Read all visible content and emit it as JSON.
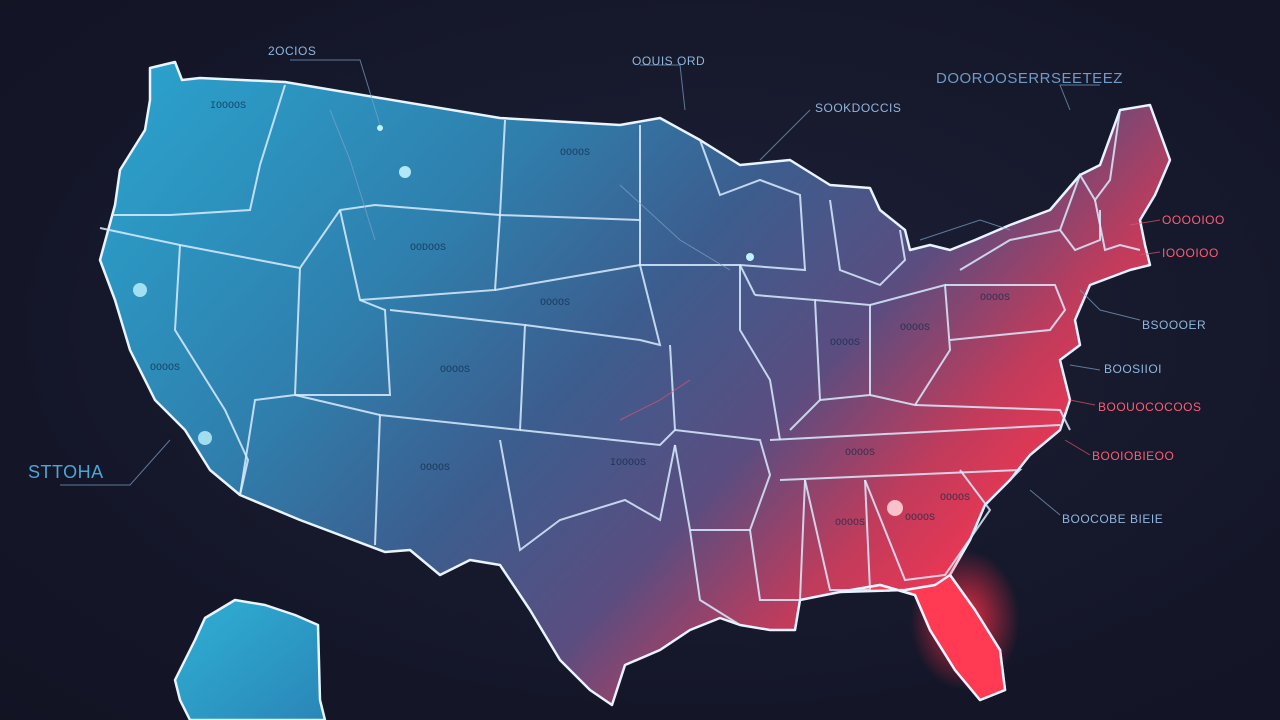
{
  "map": {
    "theme_colors": {
      "background": "#161827",
      "cool": "#2a9fd0",
      "mid": "#3f5a8a",
      "warm": "#ff3d5a",
      "outline": "#e8f4ff"
    },
    "callouts": {
      "top_1": "2OCIOS",
      "top_2": "OOUIS ORD",
      "top_3": "DOOROOSERRSEETEEZ",
      "top_4": "SOOKDOCCIS",
      "left_big": "STTOHA",
      "right_1": "OOOOIOO",
      "right_2": "IOOOIOO",
      "right_3": "BSOOOER",
      "right_4": "BOOSIIOI",
      "right_5": "BOOUOCOCOOS",
      "right_6": "BOOIOBIEOO",
      "right_7": "BOOCOBE BIEIE"
    },
    "state_labels": [
      "IOOOOS",
      "OOOOS",
      "OODOOS",
      "OOOOS",
      "OOOOS",
      "OOOOS",
      "OOOOS",
      "IOOOOS",
      "OOOOS",
      "OOOOS",
      "OOOOS",
      "OOOOS",
      "OOOOS",
      "OOOOS",
      "OOOOS"
    ]
  }
}
